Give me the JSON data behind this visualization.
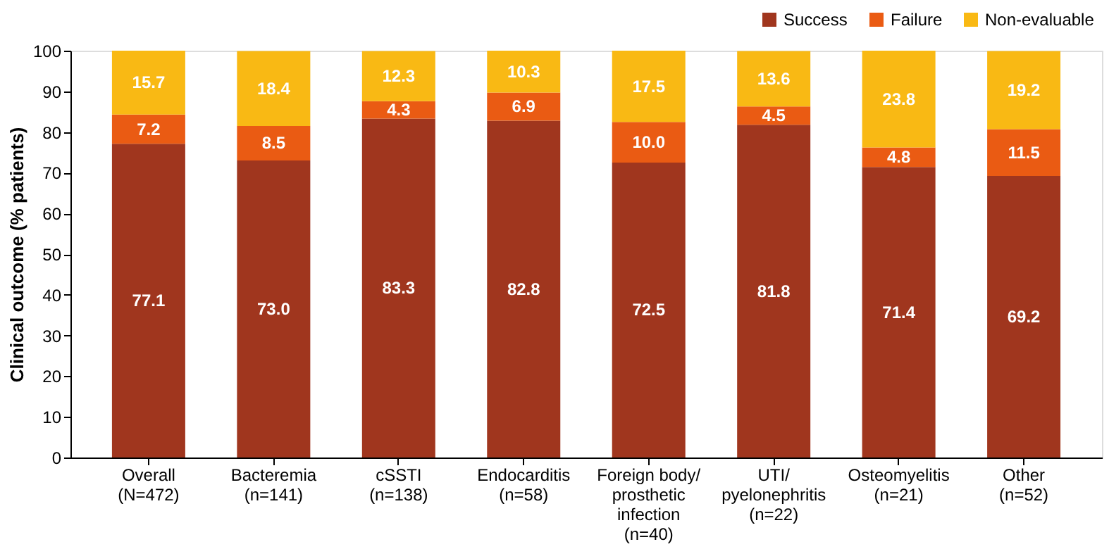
{
  "chart_data": {
    "type": "bar",
    "stacked": true,
    "ylabel": "Clinical outcome (% patients)",
    "categories": [
      "Overall\n(N=472)",
      "Bacteremia\n(n=141)",
      "cSSTI\n(n=138)",
      "Endocarditis\n(n=58)",
      "Foreign body/\nprosthetic\ninfection\n(n=40)",
      "UTI/\npyelonephritis\n(n=22)",
      "Osteomyelitis\n(n=21)",
      "Other\n(n=52)"
    ],
    "series": [
      {
        "name": "Success",
        "color": "#a0361e",
        "values": [
          77.1,
          73.0,
          83.3,
          82.8,
          72.5,
          81.8,
          71.4,
          69.2
        ],
        "value_labels": [
          "77.1",
          "73.0",
          "83.3",
          "82.8",
          "72.5",
          "81.8",
          "71.4",
          "69.2"
        ]
      },
      {
        "name": "Failure",
        "color": "#ea5b13",
        "values": [
          7.2,
          8.5,
          4.3,
          6.9,
          10.0,
          4.5,
          4.8,
          11.5
        ],
        "value_labels": [
          "7.2",
          "8.5",
          "4.3",
          "6.9",
          "10.0",
          "4.5",
          "4.8",
          "11.5"
        ]
      },
      {
        "name": "Non-evaluable",
        "color": "#f9b914",
        "values": [
          15.7,
          18.4,
          12.3,
          10.3,
          17.5,
          13.6,
          23.8,
          19.2
        ],
        "value_labels": [
          "15.7",
          "18.4",
          "12.3",
          "10.3",
          "17.5",
          "13.6",
          "23.8",
          "19.2"
        ]
      }
    ],
    "ylim": [
      0,
      100
    ],
    "yticks": [
      0,
      10,
      20,
      30,
      40,
      50,
      60,
      70,
      80,
      90,
      100
    ],
    "grid": false,
    "legend": "top right"
  }
}
